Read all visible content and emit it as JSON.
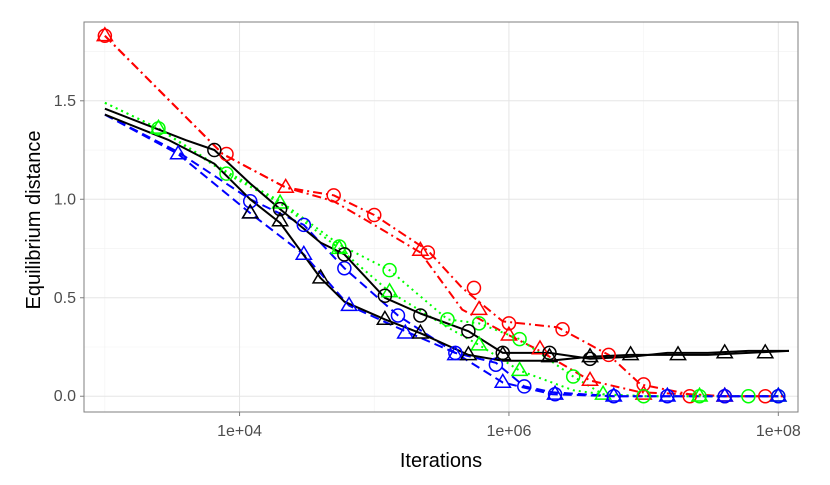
{
  "chart_data": {
    "type": "line",
    "title": "",
    "xlabel": "Iterations",
    "ylabel": "Equilibrium distance",
    "x_scale": "log10",
    "xlim": [
      700,
      140000000
    ],
    "ylim": [
      -0.08,
      1.9
    ],
    "x_ticks": [
      {
        "value": 10000,
        "label": "1e+04"
      },
      {
        "value": 1000000,
        "label": "1e+06"
      },
      {
        "value": 100000000,
        "label": "1e+08"
      }
    ],
    "y_ticks": [
      {
        "value": 0.0,
        "label": "0.0"
      },
      {
        "value": 0.5,
        "label": "0.5"
      },
      {
        "value": 1.0,
        "label": "1.0"
      },
      {
        "value": 1.5,
        "label": "1.5"
      }
    ],
    "grid": true,
    "legend": "none",
    "series": [
      {
        "color": "#ff0000",
        "linestyle": "dashdot",
        "marker": "circle",
        "x": [
          1000,
          7500,
          22000,
          50000,
          100000,
          250000,
          450000,
          900000,
          2300000,
          5500000,
          9500000,
          22000000,
          40000000,
          80000000,
          110000000
        ],
        "y": [
          1.83,
          1.23,
          1.06,
          1.02,
          0.92,
          0.74,
          0.55,
          0.38,
          0.35,
          0.21,
          0.06,
          0.01,
          0.0,
          0.0,
          0.0
        ]
      },
      {
        "color": "#ff0000",
        "linestyle": "dashdot",
        "marker": "triangle",
        "x": [
          1000,
          7500,
          22000,
          50000,
          100000,
          220000,
          450000,
          1000000,
          1600000,
          4000000,
          9500000,
          22000000,
          40000000,
          80000000,
          110000000
        ],
        "y": [
          1.83,
          1.23,
          1.06,
          0.99,
          0.87,
          0.73,
          0.44,
          0.31,
          0.24,
          0.08,
          0.02,
          0.01,
          0.0,
          0.0,
          0.0
        ]
      },
      {
        "color": "#00ff00",
        "linestyle": "dotted",
        "marker": "circle",
        "x": [
          1000,
          2500,
          8000,
          20000,
          55000,
          130000,
          350000,
          600000,
          1200000,
          3000000,
          5000000,
          10000000,
          26000000,
          60000000,
          100000000
        ],
        "y": [
          1.49,
          1.36,
          1.14,
          0.99,
          0.77,
          0.64,
          0.39,
          0.37,
          0.29,
          0.1,
          0.01,
          0.0,
          0.0,
          0.0,
          0.0
        ]
      },
      {
        "color": "#00ff00",
        "linestyle": "dotted",
        "marker": "triangle",
        "x": [
          1000,
          2500,
          8000,
          20000,
          55000,
          130000,
          350000,
          600000,
          1200000,
          3000000,
          5000000,
          10000000,
          26000000,
          60000000,
          100000000
        ],
        "y": [
          1.49,
          1.36,
          1.13,
          0.98,
          0.75,
          0.53,
          0.35,
          0.26,
          0.13,
          0.03,
          0.01,
          0.0,
          0.0,
          0.0,
          0.0
        ]
      },
      {
        "color": "#0000ff",
        "linestyle": "dashed",
        "marker": "circle",
        "x": [
          1000,
          3500,
          12000,
          30000,
          60000,
          150000,
          400000,
          800000,
          1300000,
          2100000,
          6000000,
          15000000,
          40000000,
          100000000
        ],
        "y": [
          1.43,
          1.24,
          1.0,
          0.87,
          0.65,
          0.41,
          0.22,
          0.17,
          0.05,
          0.02,
          0.0,
          0.0,
          0.0,
          0.0
        ]
      },
      {
        "color": "#0000ff",
        "linestyle": "dashed",
        "marker": "triangle",
        "x": [
          1000,
          3500,
          12000,
          30000,
          65000,
          170000,
          400000,
          900000,
          2100000,
          6000000,
          15000000,
          40000000,
          100000000
        ],
        "y": [
          1.43,
          1.23,
          0.93,
          0.72,
          0.46,
          0.33,
          0.22,
          0.07,
          0.01,
          0.0,
          0.0,
          0.0,
          0.0
        ]
      },
      {
        "color": "#000000",
        "linestyle": "solid",
        "marker": "circle",
        "x": [
          1000,
          2000,
          4000,
          6500,
          12000,
          20000,
          40000,
          60000,
          120000,
          220000,
          500000,
          900000,
          2000000,
          4000000,
          8000000,
          15000000,
          30000000,
          60000000,
          120000000
        ],
        "y": [
          1.46,
          1.38,
          1.3,
          1.25,
          1.08,
          0.95,
          0.78,
          0.72,
          0.5,
          0.42,
          0.33,
          0.22,
          0.22,
          0.19,
          0.2,
          0.22,
          0.22,
          0.23,
          0.23
        ]
      },
      {
        "color": "#000000",
        "linestyle": "solid",
        "marker": "triangle",
        "x": [
          1000,
          3000,
          6500,
          12000,
          20000,
          40000,
          60000,
          120000,
          220000,
          500000,
          900000,
          2000000,
          4000000,
          8000000,
          15000000,
          30000000,
          60000000,
          120000000
        ],
        "y": [
          1.43,
          1.3,
          1.18,
          1.0,
          0.88,
          0.6,
          0.48,
          0.39,
          0.32,
          0.21,
          0.18,
          0.18,
          0.2,
          0.21,
          0.21,
          0.21,
          0.22,
          0.23
        ]
      }
    ],
    "markers": [
      {
        "series": 0,
        "x": [
          1000,
          8000,
          50000,
          100000,
          250000,
          550000,
          1000000,
          2500000,
          5500000,
          10000000,
          22000000,
          40000000,
          80000000
        ],
        "y": [
          1.83,
          1.23,
          1.02,
          0.92,
          0.73,
          0.55,
          0.37,
          0.34,
          0.21,
          0.06,
          0.0,
          0.0,
          0.0
        ]
      },
      {
        "series": 1,
        "x": [
          1000,
          22000,
          220000,
          600000,
          1000000,
          1700000,
          4000000,
          10000000,
          40000000
        ],
        "y": [
          1.83,
          1.06,
          0.74,
          0.44,
          0.31,
          0.24,
          0.08,
          0.01,
          0.0
        ]
      },
      {
        "series": 2,
        "x": [
          2500,
          8000,
          55000,
          130000,
          350000,
          600000,
          1200000,
          3000000,
          10000000,
          26000000,
          60000000,
          100000000
        ],
        "y": [
          1.36,
          1.13,
          0.76,
          0.64,
          0.39,
          0.37,
          0.29,
          0.1,
          0.0,
          0.0,
          0.0,
          0.0
        ]
      },
      {
        "series": 3,
        "x": [
          2500,
          20000,
          55000,
          130000,
          600000,
          1200000,
          5000000,
          26000000,
          100000000
        ],
        "y": [
          1.36,
          0.98,
          0.75,
          0.53,
          0.26,
          0.13,
          0.01,
          0.0,
          0.0
        ]
      },
      {
        "series": 4,
        "x": [
          12000,
          30000,
          60000,
          150000,
          400000,
          800000,
          1300000,
          2200000,
          6000000,
          15000000,
          40000000,
          100000000
        ],
        "y": [
          0.99,
          0.87,
          0.65,
          0.41,
          0.22,
          0.16,
          0.05,
          0.01,
          0.0,
          0.0,
          0.0,
          0.0
        ]
      },
      {
        "series": 5,
        "x": [
          3500,
          12000,
          30000,
          65000,
          170000,
          400000,
          900000,
          2200000,
          6000000,
          15000000,
          40000000,
          100000000
        ],
        "y": [
          1.23,
          0.93,
          0.72,
          0.46,
          0.32,
          0.21,
          0.07,
          0.01,
          0.0,
          0.0,
          0.0,
          0.0
        ]
      },
      {
        "series": 6,
        "x": [
          6500,
          20000,
          60000,
          120000,
          220000,
          500000,
          900000,
          2000000,
          4000000
        ],
        "y": [
          1.25,
          0.95,
          0.72,
          0.51,
          0.41,
          0.33,
          0.22,
          0.22,
          0.19
        ]
      },
      {
        "series": 7,
        "x": [
          12000,
          20000,
          40000,
          120000,
          220000,
          500000,
          900000,
          2000000,
          4000000,
          8000000,
          18000000,
          40000000,
          80000000
        ],
        "y": [
          0.93,
          0.89,
          0.6,
          0.39,
          0.32,
          0.21,
          0.21,
          0.2,
          0.2,
          0.21,
          0.21,
          0.22,
          0.22
        ]
      }
    ]
  }
}
